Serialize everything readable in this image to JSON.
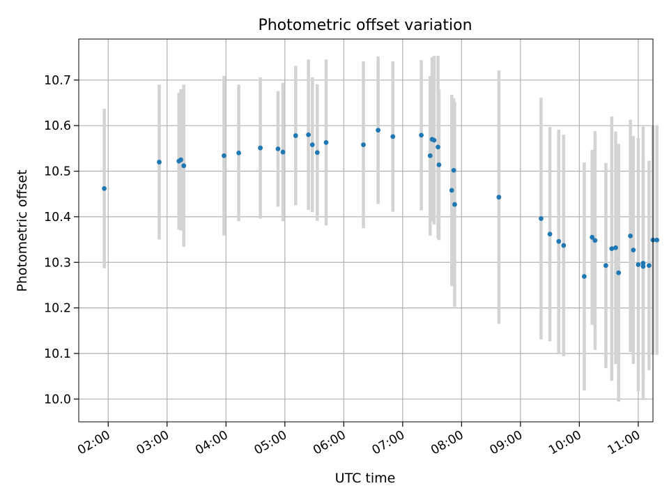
{
  "chart_data": {
    "type": "scatter",
    "title": "Photometric offset variation",
    "xlabel": "UTC time",
    "ylabel": "Photometric offset",
    "xlim": [
      "01:30",
      "11:15"
    ],
    "ylim": [
      9.95,
      10.79
    ],
    "grid": true,
    "x_ticks": [
      "02:00",
      "03:00",
      "04:00",
      "05:00",
      "06:00",
      "07:00",
      "08:00",
      "09:00",
      "10:00",
      "11:00"
    ],
    "y_ticks": [
      "10.0",
      "10.1",
      "10.2",
      "10.3",
      "10.4",
      "10.5",
      "10.6",
      "10.7"
    ],
    "colors": {
      "point": "#1f77b4",
      "errorbar": "#d3d3d3",
      "grid": "#b0b0b0"
    },
    "series": [
      {
        "x": [
          "01:56",
          "02:52",
          "03:12",
          "03:14",
          "03:17",
          "03:58",
          "04:13",
          "04:35",
          "04:53",
          "04:58",
          "05:11",
          "05:24",
          "05:28",
          "05:33",
          "05:42",
          "06:20",
          "06:35",
          "06:50",
          "07:19",
          "07:28",
          "07:30",
          "07:32",
          "07:36",
          "07:37",
          "07:50",
          "07:52",
          "07:53",
          "08:38",
          "09:21",
          "09:30",
          "09:39",
          "09:44",
          "10:05",
          "10:13",
          "10:16",
          "10:27",
          "10:33",
          "10:37",
          "10:40",
          "10:52",
          "10:55",
          "11:00",
          "11:05",
          "11:05",
          "11:11",
          "11:15",
          "11:19"
        ],
        "y": [
          10.462,
          10.52,
          10.522,
          10.525,
          10.512,
          10.534,
          10.54,
          10.551,
          10.549,
          10.542,
          10.578,
          10.58,
          10.558,
          10.541,
          10.563,
          10.558,
          10.59,
          10.576,
          10.579,
          10.534,
          10.57,
          10.568,
          10.553,
          10.514,
          10.458,
          10.502,
          10.427,
          10.443,
          10.396,
          10.362,
          10.346,
          10.337,
          10.269,
          10.355,
          10.348,
          10.293,
          10.33,
          10.332,
          10.277,
          10.358,
          10.327,
          10.295,
          10.291,
          10.298,
          10.293,
          10.349,
          10.349
        ],
        "err": [
          0.175,
          0.17,
          0.15,
          0.155,
          0.178,
          0.175,
          0.15,
          0.155,
          0.127,
          0.152,
          0.153,
          0.165,
          0.148,
          0.15,
          0.182,
          0.183,
          0.162,
          0.165,
          0.165,
          0.175,
          0.18,
          0.185,
          0.2,
          0.165,
          0.21,
          0.158,
          0.225,
          0.278,
          0.265,
          0.235,
          0.245,
          0.243,
          0.25,
          0.192,
          0.24,
          0.225,
          0.29,
          0.255,
          0.283,
          0.255,
          0.25,
          0.278,
          0.245,
          0.3,
          0.23,
          0.252,
          0.252
        ]
      }
    ]
  }
}
